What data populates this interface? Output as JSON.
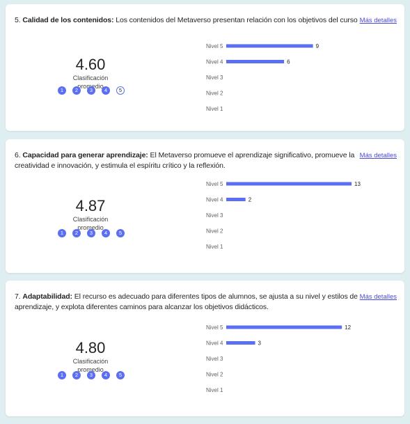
{
  "link_label": "Más detalles",
  "avg_label_line1": "Clasificación",
  "avg_label_line2": "promedio",
  "colors": {
    "bar": "#5b6ff2",
    "star": "#5b6ff2",
    "link": "#4a4ae0"
  },
  "questions": [
    {
      "number": "5.",
      "title": "Calidad de los contenidos:",
      "text": "Los contenidos del Metaverso presentan relación con los objetivos del curso",
      "average": "4.60",
      "stars": [
        "1",
        "2",
        "3",
        "4",
        "5"
      ]
    },
    {
      "number": "6.",
      "title": "Capacidad para generar aprendizaje:",
      "text": "El Metaverso promueve el aprendizaje significativo, promueve la creatividad e innovación, y estimula el espíritu crítico y la reflexión.",
      "average": "4.87",
      "stars": [
        "1",
        "2",
        "3",
        "4",
        "5"
      ]
    },
    {
      "number": "7.",
      "title": "Adaptabilidad:",
      "text": "El recurso es adecuado para diferentes tipos de alumnos, se ajusta a su nivel y estilos de aprendizaje, y explota diferentes caminos para alcanzar los objetivos didácticos.",
      "average": "4.80",
      "stars": [
        "1",
        "2",
        "3",
        "4",
        "5"
      ]
    }
  ],
  "chart_data": [
    {
      "type": "bar",
      "orientation": "horizontal",
      "categories": [
        "Nivel 5",
        "Nivel 4",
        "Nivel 3",
        "Nivel 2",
        "Nivel 1"
      ],
      "values": [
        9,
        6,
        0,
        0,
        0
      ],
      "xlim": [
        0,
        13
      ]
    },
    {
      "type": "bar",
      "orientation": "horizontal",
      "categories": [
        "Nivel 5",
        "Nivel 4",
        "Nivel 3",
        "Nivel 2",
        "Nivel 1"
      ],
      "values": [
        13,
        2,
        0,
        0,
        0
      ],
      "xlim": [
        0,
        13
      ]
    },
    {
      "type": "bar",
      "orientation": "horizontal",
      "categories": [
        "Nivel 5",
        "Nivel 4",
        "Nivel 3",
        "Nivel 2",
        "Nivel 1"
      ],
      "values": [
        12,
        3,
        0,
        0,
        0
      ],
      "xlim": [
        0,
        13
      ]
    }
  ]
}
